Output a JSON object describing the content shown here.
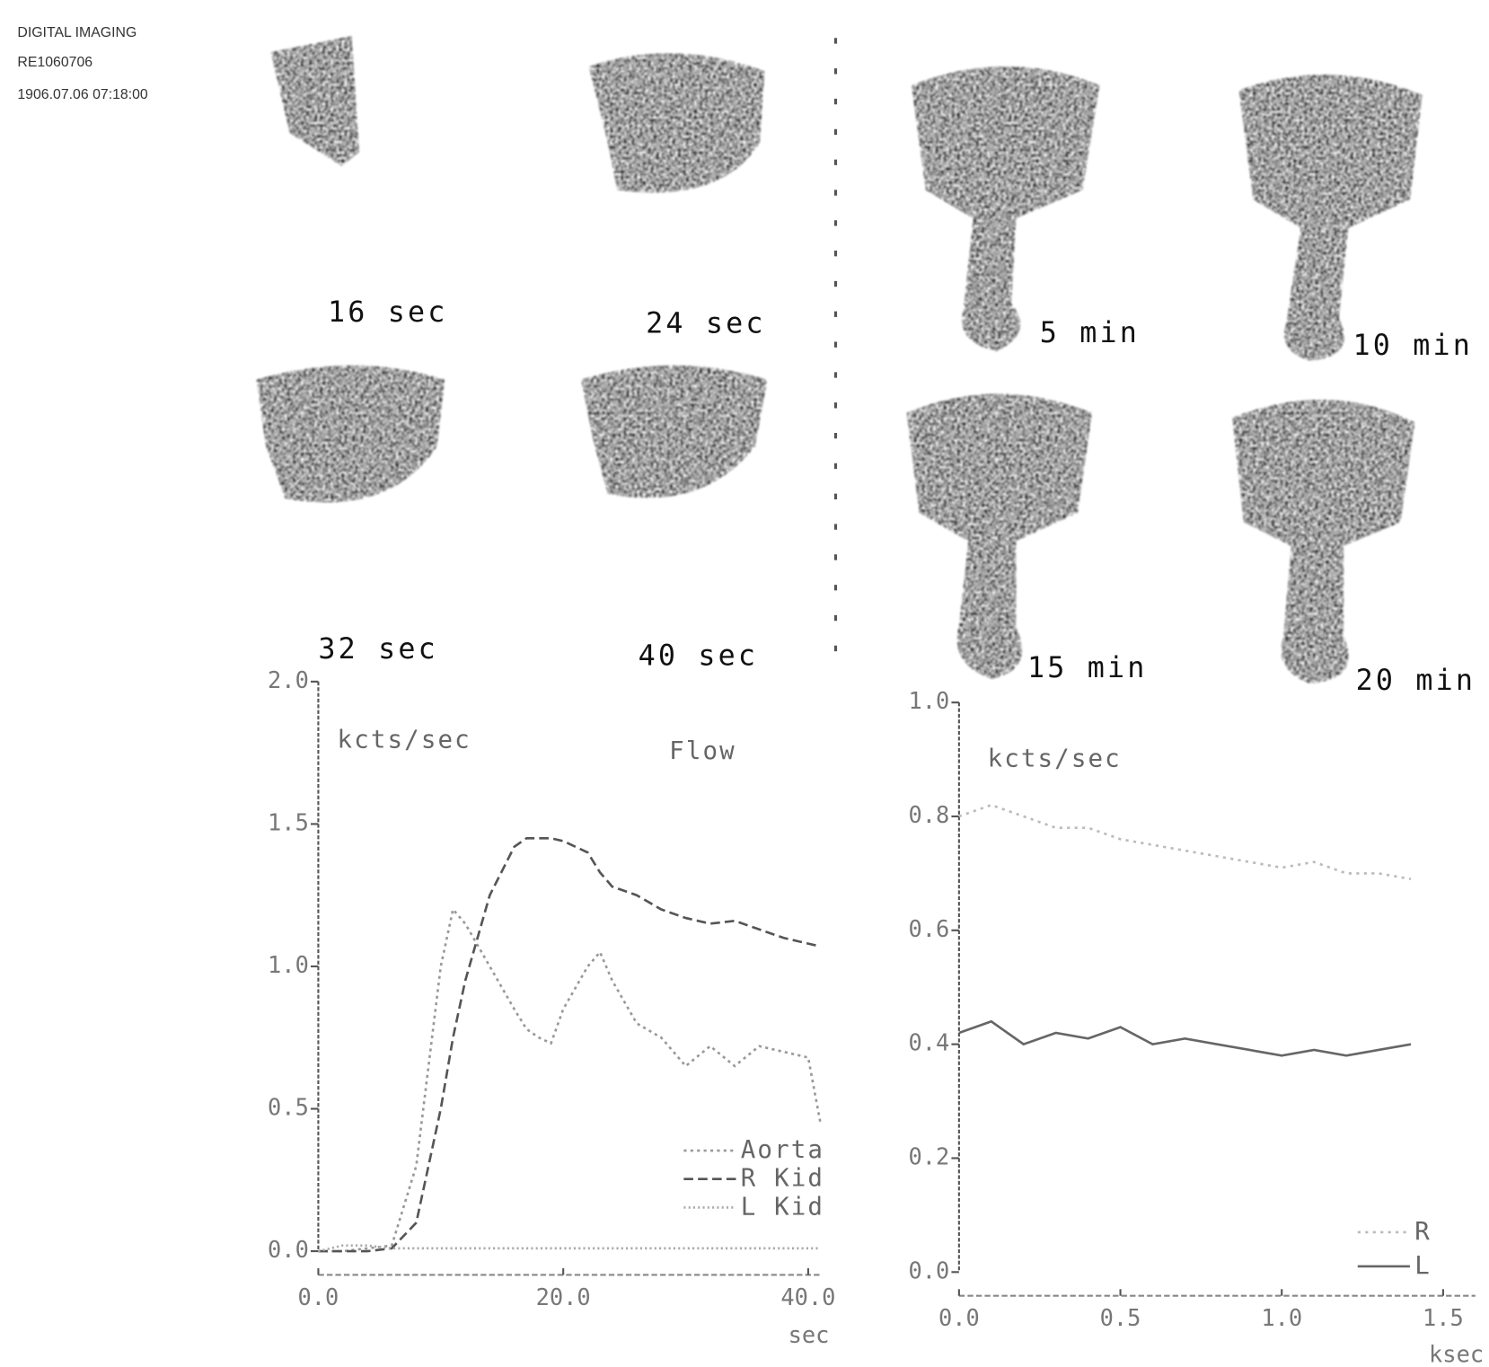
{
  "header": {
    "lines": [
      "DIGITAL IMAGING",
      "RE1060706",
      "1906.07.06 07:18:00"
    ]
  },
  "frames": [
    "16 sec",
    "24 sec",
    "32 sec",
    "40 sec",
    "5 min",
    "10 min",
    "15 min",
    "20 min"
  ],
  "chart_data": [
    {
      "type": "line",
      "title": "Flow",
      "y_label": "kcts/sec",
      "x_label": "sec",
      "xlim": [
        0,
        41
      ],
      "ylim": [
        0,
        2
      ],
      "xticks": [
        {
          "value": 0,
          "label": "0.0"
        },
        {
          "value": 20,
          "label": "20.0"
        },
        {
          "value": 40,
          "label": "40.0"
        }
      ],
      "yticks": [
        {
          "value": 0,
          "label": "0.0"
        },
        {
          "value": 0.5,
          "label": "0.5"
        },
        {
          "value": 1,
          "label": "1.0"
        },
        {
          "value": 1.5,
          "label": "1.5"
        },
        {
          "value": 2,
          "label": "2.0"
        }
      ],
      "x": [
        0,
        2,
        4,
        6,
        8,
        10,
        11,
        12,
        14,
        16,
        17,
        18,
        19,
        20,
        22,
        23,
        24,
        26,
        28,
        30,
        32,
        34,
        36,
        38,
        40,
        41
      ],
      "series": [
        {
          "name": "Aorta",
          "color": "#999999",
          "dash": "3 4",
          "values": [
            0,
            0,
            0.01,
            0.02,
            0.3,
            1.0,
            1.2,
            1.15,
            1.0,
            0.85,
            0.78,
            0.75,
            0.73,
            0.85,
            1.0,
            1.05,
            0.95,
            0.8,
            0.75,
            0.65,
            0.72,
            0.65,
            0.72,
            0.7,
            0.68,
            0.45
          ]
        },
        {
          "name": "R Kid",
          "color": "#555555",
          "dash": "10 5",
          "values": [
            0,
            0,
            0,
            0.01,
            0.1,
            0.5,
            0.75,
            0.95,
            1.25,
            1.42,
            1.45,
            1.45,
            1.45,
            1.44,
            1.4,
            1.33,
            1.28,
            1.25,
            1.2,
            1.17,
            1.15,
            1.16,
            1.13,
            1.1,
            1.08,
            1.07
          ]
        },
        {
          "name": "L Kid",
          "color": "#aaaaaa",
          "dash": "2 3",
          "values": [
            0,
            0.02,
            0.02,
            0.01,
            0.01,
            0.01,
            0.01,
            0.01,
            0.01,
            0.01,
            0.01,
            0.01,
            0.01,
            0.01,
            0.01,
            0.01,
            0.01,
            0.01,
            0.01,
            0.01,
            0.01,
            0.01,
            0.01,
            0.01,
            0.01,
            0.01
          ]
        }
      ]
    },
    {
      "type": "line",
      "y_label": "kcts/sec",
      "x_label": "ksec",
      "xlim": [
        0,
        1.6
      ],
      "ylim": [
        0,
        1
      ],
      "xticks": [
        {
          "value": 0,
          "label": "0.0"
        },
        {
          "value": 0.5,
          "label": "0.5"
        },
        {
          "value": 1,
          "label": "1.0"
        },
        {
          "value": 1.5,
          "label": "1.5"
        }
      ],
      "yticks": [
        {
          "value": 0,
          "label": "0.0"
        },
        {
          "value": 0.2,
          "label": "0.2"
        },
        {
          "value": 0.4,
          "label": "0.4"
        },
        {
          "value": 0.6,
          "label": "0.6"
        },
        {
          "value": 0.8,
          "label": "0.8"
        },
        {
          "value": 1,
          "label": "1.0"
        }
      ],
      "x": [
        0,
        0.1,
        0.2,
        0.3,
        0.4,
        0.5,
        0.6,
        0.7,
        0.8,
        0.9,
        1.0,
        1.1,
        1.2,
        1.3,
        1.4
      ],
      "series": [
        {
          "name": "R",
          "color": "#bbbbbb",
          "dash": "3 5",
          "values": [
            0.8,
            0.82,
            0.8,
            0.78,
            0.78,
            0.76,
            0.75,
            0.74,
            0.73,
            0.72,
            0.71,
            0.72,
            0.7,
            0.7,
            0.69
          ]
        },
        {
          "name": "L",
          "color": "#666666",
          "dash": "none",
          "values": [
            0.42,
            0.44,
            0.4,
            0.42,
            0.41,
            0.43,
            0.4,
            0.41,
            0.4,
            0.39,
            0.38,
            0.39,
            0.38,
            0.39,
            0.4
          ]
        }
      ]
    }
  ]
}
